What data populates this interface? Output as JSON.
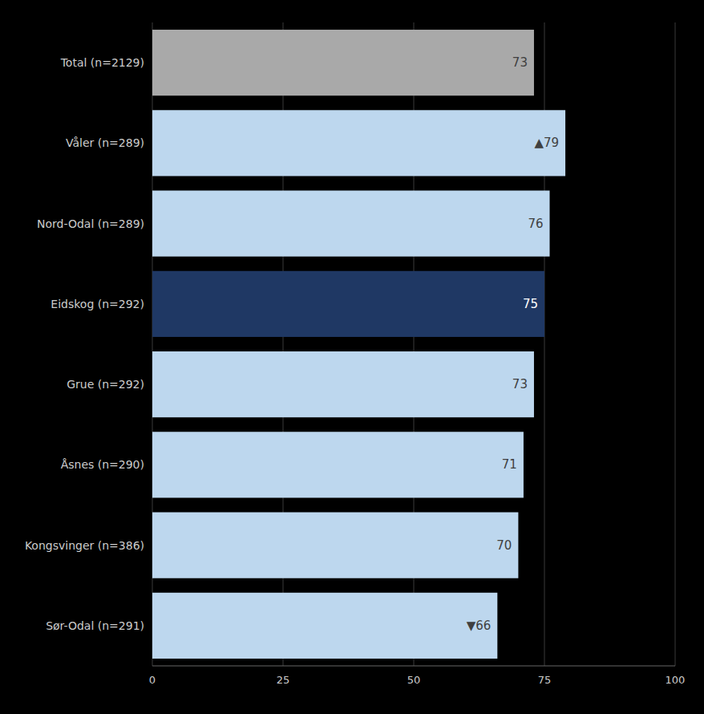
{
  "chart_data": {
    "type": "bar",
    "orientation": "horizontal",
    "categories": [
      "Total (n=2129)",
      "Våler (n=289)",
      "Nord-Odal (n=289)",
      "Eidskog (n=292)",
      "Grue (n=292)",
      "Åsnes (n=290)",
      "Kongsvinger (n=386)",
      "Sør-Odal (n=291)"
    ],
    "values": [
      73,
      79,
      76,
      75,
      73,
      71,
      70,
      66
    ],
    "value_labels": [
      "73",
      "▲79",
      "76",
      "75",
      "73",
      "71",
      "70",
      "▼66"
    ],
    "data_labels": true,
    "colors": [
      "#a9a9a9",
      "#bdd7ee",
      "#bdd7ee",
      "#1f3864",
      "#bdd7ee",
      "#bdd7ee",
      "#bdd7ee",
      "#bdd7ee"
    ],
    "xlim": [
      0,
      100
    ],
    "xticks": [
      0,
      25,
      50,
      75,
      100
    ],
    "grid": true
  }
}
